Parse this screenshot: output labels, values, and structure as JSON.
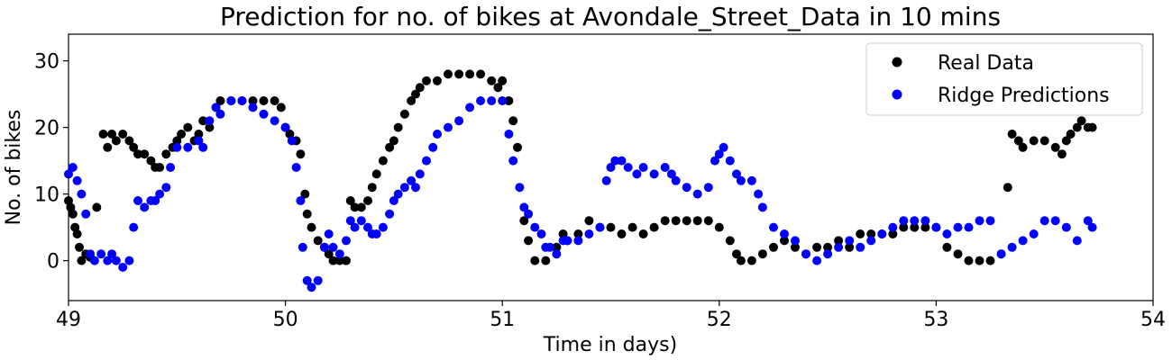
{
  "chart_data": {
    "type": "scatter",
    "title": "Prediction for no. of bikes at Avondale_Street_Data in 10 mins",
    "xlabel": "Time in days)",
    "ylabel": "No. of bikes",
    "xlim": [
      49,
      54
    ],
    "ylim": [
      -6,
      34
    ],
    "xticks": [
      "49",
      "50",
      "51",
      "52",
      "53",
      "54"
    ],
    "yticks": [
      "0",
      "10",
      "20",
      "30"
    ],
    "grid": false,
    "legend": "top-right",
    "series": [
      {
        "name": "Real Data",
        "color": "#000000",
        "points": [
          [
            49.0,
            9
          ],
          [
            49.01,
            8
          ],
          [
            49.02,
            7
          ],
          [
            49.03,
            5
          ],
          [
            49.04,
            4
          ],
          [
            49.05,
            2
          ],
          [
            49.06,
            0
          ],
          [
            49.08,
            1
          ],
          [
            49.1,
            0.5
          ],
          [
            49.13,
            8
          ],
          [
            49.16,
            19
          ],
          [
            49.18,
            17
          ],
          [
            49.2,
            19
          ],
          [
            49.22,
            18
          ],
          [
            49.25,
            19
          ],
          [
            49.28,
            18
          ],
          [
            49.3,
            17
          ],
          [
            49.32,
            16
          ],
          [
            49.35,
            16
          ],
          [
            49.38,
            15
          ],
          [
            49.4,
            14
          ],
          [
            49.42,
            14
          ],
          [
            49.45,
            16
          ],
          [
            49.48,
            17
          ],
          [
            49.5,
            18
          ],
          [
            49.52,
            19
          ],
          [
            49.55,
            20
          ],
          [
            49.58,
            18
          ],
          [
            49.6,
            19
          ],
          [
            49.62,
            21
          ],
          [
            49.65,
            20
          ],
          [
            49.68,
            23
          ],
          [
            49.7,
            24
          ],
          [
            49.75,
            24
          ],
          [
            49.8,
            24
          ],
          [
            49.85,
            24
          ],
          [
            49.9,
            24
          ],
          [
            49.95,
            24
          ],
          [
            49.98,
            23
          ],
          [
            50.0,
            20
          ],
          [
            50.02,
            19
          ],
          [
            50.05,
            18
          ],
          [
            50.07,
            16
          ],
          [
            50.09,
            10
          ],
          [
            50.1,
            7
          ],
          [
            50.12,
            5
          ],
          [
            50.15,
            3
          ],
          [
            50.18,
            2
          ],
          [
            50.2,
            1
          ],
          [
            50.22,
            0
          ],
          [
            50.25,
            0
          ],
          [
            50.28,
            0
          ],
          [
            50.3,
            9
          ],
          [
            50.32,
            8
          ],
          [
            50.35,
            8
          ],
          [
            50.38,
            9
          ],
          [
            50.4,
            11
          ],
          [
            50.42,
            13
          ],
          [
            50.45,
            15
          ],
          [
            50.48,
            17
          ],
          [
            50.5,
            18
          ],
          [
            50.52,
            20
          ],
          [
            50.55,
            22
          ],
          [
            50.58,
            24
          ],
          [
            50.6,
            25
          ],
          [
            50.62,
            26
          ],
          [
            50.65,
            27
          ],
          [
            50.7,
            27
          ],
          [
            50.75,
            28
          ],
          [
            50.8,
            28
          ],
          [
            50.85,
            28
          ],
          [
            50.9,
            28
          ],
          [
            50.95,
            27
          ],
          [
            50.98,
            26
          ],
          [
            51.0,
            27
          ],
          [
            51.03,
            24
          ],
          [
            51.05,
            21
          ],
          [
            51.07,
            17
          ],
          [
            51.1,
            6
          ],
          [
            51.12,
            3
          ],
          [
            51.15,
            0
          ],
          [
            51.2,
            0
          ],
          [
            51.25,
            2
          ],
          [
            51.28,
            4
          ],
          [
            51.3,
            3
          ],
          [
            51.35,
            4
          ],
          [
            51.4,
            6
          ],
          [
            51.45,
            5
          ],
          [
            51.5,
            5
          ],
          [
            51.55,
            4
          ],
          [
            51.6,
            5
          ],
          [
            51.65,
            4
          ],
          [
            51.7,
            5
          ],
          [
            51.75,
            6
          ],
          [
            51.8,
            6
          ],
          [
            51.85,
            6
          ],
          [
            51.9,
            6
          ],
          [
            51.95,
            6
          ],
          [
            52.0,
            5
          ],
          [
            52.05,
            3
          ],
          [
            52.08,
            1
          ],
          [
            52.1,
            0
          ],
          [
            52.15,
            0
          ],
          [
            52.2,
            1
          ],
          [
            52.25,
            2
          ],
          [
            52.3,
            3
          ],
          [
            52.35,
            2
          ],
          [
            52.4,
            1
          ],
          [
            52.45,
            2
          ],
          [
            52.5,
            2
          ],
          [
            52.55,
            3
          ],
          [
            52.6,
            2
          ],
          [
            52.65,
            4
          ],
          [
            52.7,
            4
          ],
          [
            52.75,
            4
          ],
          [
            52.8,
            4
          ],
          [
            52.85,
            5
          ],
          [
            52.9,
            5
          ],
          [
            52.95,
            5
          ],
          [
            53.0,
            5
          ],
          [
            53.05,
            2
          ],
          [
            53.1,
            1
          ],
          [
            53.15,
            0
          ],
          [
            53.2,
            0
          ],
          [
            53.25,
            0
          ],
          [
            53.3,
            1
          ],
          [
            53.33,
            11
          ],
          [
            53.35,
            19
          ],
          [
            53.38,
            18
          ],
          [
            53.4,
            17
          ],
          [
            53.45,
            18
          ],
          [
            53.5,
            18
          ],
          [
            53.55,
            17
          ],
          [
            53.58,
            16
          ],
          [
            53.6,
            18
          ],
          [
            53.62,
            19
          ],
          [
            53.65,
            20
          ],
          [
            53.67,
            21
          ],
          [
            53.7,
            20
          ],
          [
            53.72,
            20
          ]
        ]
      },
      {
        "name": "Ridge Predictions",
        "color": "#0000ff",
        "points": [
          [
            49.0,
            13
          ],
          [
            49.02,
            14
          ],
          [
            49.04,
            12
          ],
          [
            49.06,
            10
          ],
          [
            49.08,
            7
          ],
          [
            49.1,
            1
          ],
          [
            49.12,
            0
          ],
          [
            49.15,
            1
          ],
          [
            49.18,
            0
          ],
          [
            49.2,
            1
          ],
          [
            49.22,
            0
          ],
          [
            49.25,
            -1
          ],
          [
            49.28,
            0
          ],
          [
            49.3,
            5
          ],
          [
            49.32,
            9
          ],
          [
            49.35,
            8
          ],
          [
            49.38,
            9
          ],
          [
            49.4,
            9
          ],
          [
            49.42,
            10
          ],
          [
            49.45,
            11
          ],
          [
            49.47,
            14
          ],
          [
            49.5,
            17
          ],
          [
            49.55,
            17
          ],
          [
            49.6,
            18
          ],
          [
            49.62,
            17
          ],
          [
            49.65,
            21
          ],
          [
            49.68,
            23
          ],
          [
            49.7,
            22
          ],
          [
            49.75,
            24
          ],
          [
            49.8,
            24
          ],
          [
            49.85,
            23
          ],
          [
            49.9,
            22
          ],
          [
            49.95,
            21
          ],
          [
            50.0,
            20
          ],
          [
            50.03,
            18
          ],
          [
            50.05,
            14
          ],
          [
            50.07,
            9
          ],
          [
            50.08,
            2
          ],
          [
            50.1,
            -3
          ],
          [
            50.12,
            -4
          ],
          [
            50.15,
            -3
          ],
          [
            50.18,
            2
          ],
          [
            50.2,
            4
          ],
          [
            50.22,
            2
          ],
          [
            50.25,
            1
          ],
          [
            50.28,
            3
          ],
          [
            50.3,
            6
          ],
          [
            50.32,
            5
          ],
          [
            50.35,
            6
          ],
          [
            50.38,
            5
          ],
          [
            50.4,
            4
          ],
          [
            50.42,
            4
          ],
          [
            50.45,
            5
          ],
          [
            50.48,
            7
          ],
          [
            50.5,
            9
          ],
          [
            50.52,
            10
          ],
          [
            50.55,
            11
          ],
          [
            50.58,
            12
          ],
          [
            50.6,
            11
          ],
          [
            50.62,
            13
          ],
          [
            50.65,
            15
          ],
          [
            50.68,
            17
          ],
          [
            50.7,
            19
          ],
          [
            50.75,
            20
          ],
          [
            50.8,
            21
          ],
          [
            50.85,
            23
          ],
          [
            50.9,
            24
          ],
          [
            50.95,
            24
          ],
          [
            51.0,
            24
          ],
          [
            51.03,
            19
          ],
          [
            51.05,
            15
          ],
          [
            51.08,
            11
          ],
          [
            51.1,
            8
          ],
          [
            51.12,
            7
          ],
          [
            51.15,
            5
          ],
          [
            51.18,
            4
          ],
          [
            51.2,
            2
          ],
          [
            51.22,
            2
          ],
          [
            51.25,
            1
          ],
          [
            51.28,
            3
          ],
          [
            51.3,
            3
          ],
          [
            51.35,
            3
          ],
          [
            51.4,
            4
          ],
          [
            51.45,
            5
          ],
          [
            51.48,
            12
          ],
          [
            51.5,
            14
          ],
          [
            51.52,
            15
          ],
          [
            51.55,
            15
          ],
          [
            51.58,
            14
          ],
          [
            51.62,
            13
          ],
          [
            51.65,
            14
          ],
          [
            51.7,
            13
          ],
          [
            51.75,
            14
          ],
          [
            51.78,
            13
          ],
          [
            51.8,
            12
          ],
          [
            51.85,
            11
          ],
          [
            51.9,
            10
          ],
          [
            51.95,
            11
          ],
          [
            51.98,
            15
          ],
          [
            52.0,
            16
          ],
          [
            52.02,
            17
          ],
          [
            52.05,
            15
          ],
          [
            52.08,
            13
          ],
          [
            52.1,
            12
          ],
          [
            52.15,
            12
          ],
          [
            52.18,
            10
          ],
          [
            52.2,
            8
          ],
          [
            52.25,
            5
          ],
          [
            52.3,
            4
          ],
          [
            52.35,
            3
          ],
          [
            52.4,
            1
          ],
          [
            52.45,
            0
          ],
          [
            52.5,
            1
          ],
          [
            52.55,
            2
          ],
          [
            52.6,
            3
          ],
          [
            52.65,
            2
          ],
          [
            52.7,
            3
          ],
          [
            52.75,
            4
          ],
          [
            52.8,
            5
          ],
          [
            52.85,
            6
          ],
          [
            52.9,
            6
          ],
          [
            52.95,
            6
          ],
          [
            53.0,
            5
          ],
          [
            53.05,
            4
          ],
          [
            53.1,
            5
          ],
          [
            53.15,
            5
          ],
          [
            53.2,
            6
          ],
          [
            53.25,
            6
          ],
          [
            53.3,
            1
          ],
          [
            53.35,
            2
          ],
          [
            53.4,
            3
          ],
          [
            53.45,
            4
          ],
          [
            53.5,
            6
          ],
          [
            53.55,
            6
          ],
          [
            53.6,
            5
          ],
          [
            53.65,
            3
          ],
          [
            53.7,
            6
          ],
          [
            53.72,
            5
          ]
        ]
      }
    ]
  }
}
